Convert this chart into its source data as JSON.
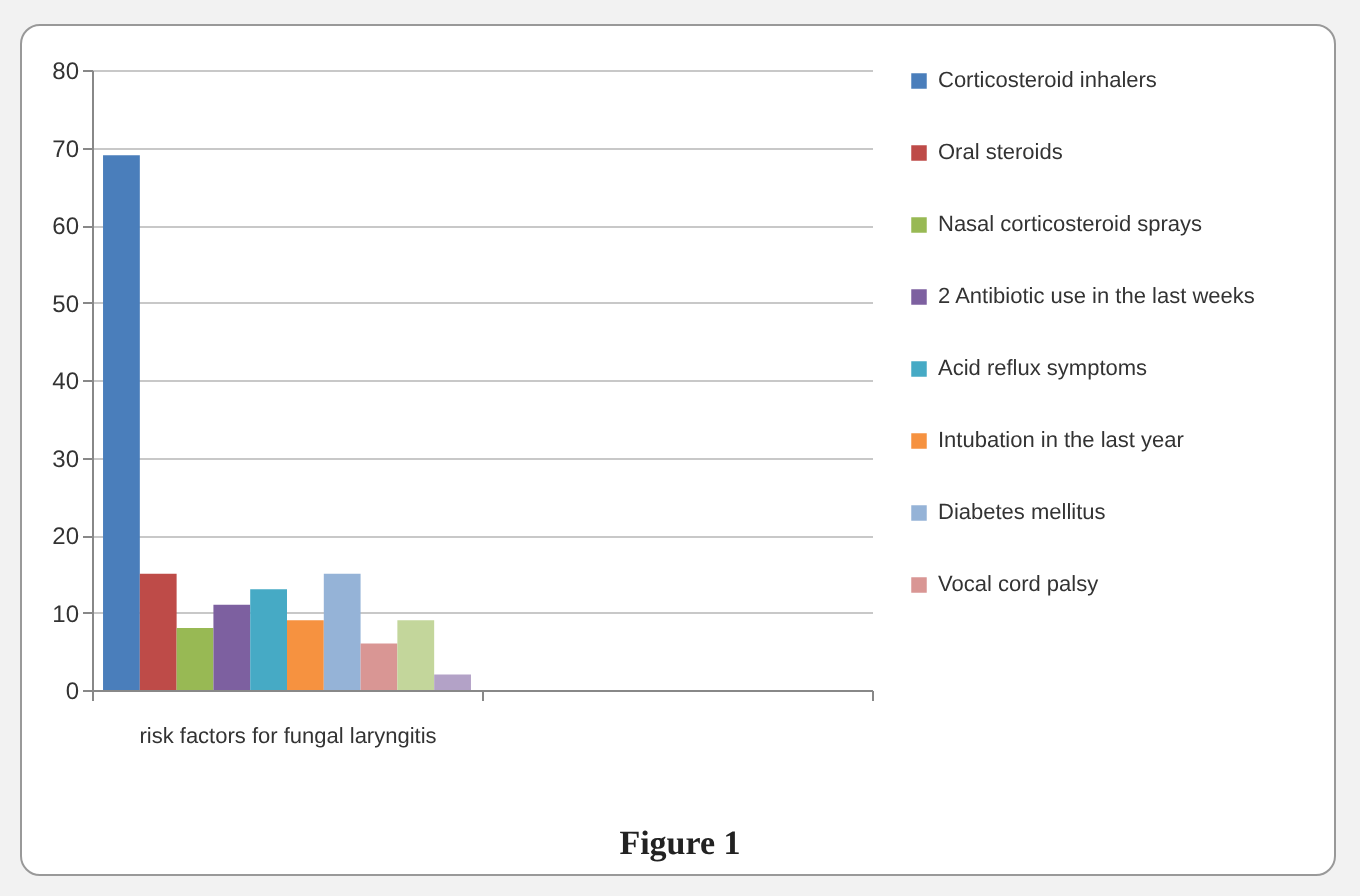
{
  "chart_data": {
    "type": "bar",
    "categories": [
      "risk factors for fungal laryngitis",
      null
    ],
    "series": [
      {
        "name": "Corticosteroid inhalers",
        "color": "#4a7ebb",
        "values": [
          69,
          null
        ]
      },
      {
        "name": "Oral steroids",
        "color": "#be4b48",
        "values": [
          15,
          null
        ]
      },
      {
        "name": "Nasal corticosteroid sprays",
        "color": "#98b954",
        "values": [
          8,
          null
        ]
      },
      {
        "name": "2 Antibiotic use in the last weeks",
        "color": "#7d60a0",
        "values": [
          11,
          null
        ]
      },
      {
        "name": "Acid reflux symptoms",
        "color": "#46aac5",
        "values": [
          13,
          null
        ]
      },
      {
        "name": "Intubation in the last year",
        "color": "#f69240",
        "values": [
          9,
          null
        ]
      },
      {
        "name": "Diabetes mellitus",
        "color": "#95b3d7",
        "values": [
          15,
          null
        ]
      },
      {
        "name": "Vocal cord palsy",
        "color": "#d99694",
        "values": [
          6,
          null
        ]
      },
      {
        "color": "#c3d69b",
        "values": [
          9,
          null
        ]
      },
      {
        "color": "#b3a2c7",
        "values": [
          2,
          null
        ]
      }
    ],
    "ylim": [
      0,
      80
    ],
    "yticks": [
      0,
      10,
      20,
      30,
      40,
      50,
      60,
      70,
      80
    ],
    "grid": "y",
    "legend": "right",
    "annotations": [
      "Figure 1"
    ]
  }
}
